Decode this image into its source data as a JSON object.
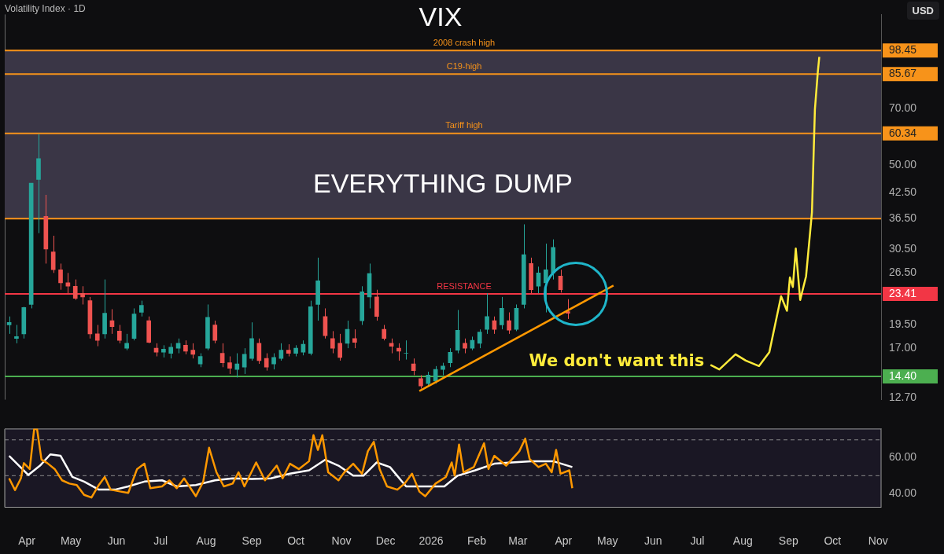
{
  "chart_data": [
    {
      "type": "candlestick",
      "title": "VIX",
      "subtitle": "Volatility Index · 1D",
      "annotations": [
        "USD"
      ],
      "x": [
        "2025-03-20",
        "2025-03-25",
        "2025-03-30",
        "2025-04-04",
        "2025-04-09",
        "2025-04-14",
        "2025-04-19",
        "2025-04-24",
        "2025-04-29",
        "2025-05-04",
        "2025-05-09",
        "2025-05-14",
        "2025-05-19",
        "2025-05-24",
        "2025-05-29",
        "2025-06-03",
        "2025-06-08",
        "2025-06-13",
        "2025-06-18",
        "2025-06-23",
        "2025-06-28",
        "2025-07-03",
        "2025-07-08",
        "2025-07-13",
        "2025-07-18",
        "2025-07-23",
        "2025-07-28",
        "2025-08-02",
        "2025-08-07",
        "2025-08-12",
        "2025-08-17",
        "2025-08-22",
        "2025-08-27",
        "2025-09-01",
        "2025-09-06",
        "2025-09-11",
        "2025-09-16",
        "2025-09-21",
        "2025-09-26",
        "2025-10-01",
        "2025-10-06",
        "2025-10-11",
        "2025-10-16",
        "2025-10-21",
        "2025-10-26",
        "2025-10-31",
        "2025-11-05",
        "2025-11-10",
        "2025-11-15",
        "2025-11-20",
        "2025-11-25",
        "2025-11-30",
        "2025-12-05",
        "2025-12-10",
        "2025-12-15",
        "2025-12-20",
        "2025-12-25",
        "2025-12-30",
        "2026-01-04",
        "2026-01-09",
        "2026-01-14",
        "2026-01-19",
        "2026-01-24",
        "2026-01-29",
        "2026-02-03",
        "2026-02-08",
        "2026-02-13",
        "2026-02-18",
        "2026-02-23",
        "2026-02-28",
        "2026-03-05",
        "2026-03-10",
        "2026-03-15",
        "2026-03-20",
        "2026-03-25",
        "2026-03-30",
        "2026-04-04"
      ],
      "ohlc": [
        [
          19.5,
          20.5,
          18.5,
          19.8
        ],
        [
          18,
          19.5,
          17.5,
          18.2
        ],
        [
          18.5,
          21.7,
          18,
          21.6
        ],
        [
          22,
          45,
          21.5,
          45
        ],
        [
          46,
          60.1,
          33.5,
          52
        ],
        [
          37,
          42,
          28,
          30.5
        ],
        [
          30,
          33,
          26.5,
          27
        ],
        [
          27,
          28,
          24,
          25
        ],
        [
          25,
          26.5,
          23.5,
          24.5
        ],
        [
          24.5,
          25.5,
          22.6,
          22.8
        ],
        [
          23.5,
          24.5,
          22,
          23
        ],
        [
          22.5,
          23,
          18,
          18.5
        ],
        [
          18.5,
          19.5,
          17.2,
          17.8
        ],
        [
          18.5,
          25.5,
          18,
          20.9
        ],
        [
          20,
          21.4,
          18.5,
          19.3
        ],
        [
          18.8,
          19.5,
          17.5,
          17.8
        ],
        [
          17,
          18.5,
          16.8,
          17.5
        ],
        [
          18,
          21.5,
          17.8,
          20.8
        ],
        [
          21,
          22.5,
          20.5,
          21.9
        ],
        [
          20,
          20.5,
          17.5,
          17.6
        ],
        [
          17,
          17.5,
          16.2,
          16.6
        ],
        [
          16.6,
          17.3,
          16.1,
          16.9
        ],
        [
          16.5,
          17.5,
          16,
          17.1
        ],
        [
          17,
          18,
          16.5,
          17.5
        ],
        [
          17.3,
          17.8,
          16.4,
          16.7
        ],
        [
          16.8,
          17.5,
          16,
          16.4
        ],
        [
          15.5,
          16.5,
          15.2,
          16.2
        ],
        [
          17,
          22,
          16.8,
          20.4
        ],
        [
          19.5,
          20,
          17.5,
          17.8
        ],
        [
          16.5,
          17.5,
          15.2,
          15.6
        ],
        [
          15.6,
          16.2,
          14.6,
          15.1
        ],
        [
          15,
          16.5,
          14.3,
          15.5
        ],
        [
          15.2,
          17,
          14.6,
          16.4
        ],
        [
          16,
          19.8,
          15.8,
          18
        ],
        [
          17.5,
          18,
          15.5,
          15.8
        ],
        [
          16,
          16.5,
          14.9,
          15.2
        ],
        [
          15.5,
          16.5,
          15,
          16.1
        ],
        [
          16,
          17.5,
          15.8,
          16.8
        ],
        [
          16.8,
          17.4,
          16.2,
          16.5
        ],
        [
          16.5,
          17.3,
          16.2,
          17
        ],
        [
          16.6,
          17.8,
          16.3,
          17.4
        ],
        [
          16.5,
          22.5,
          16.3,
          21.7
        ],
        [
          22,
          29,
          20,
          25.3
        ],
        [
          20.5,
          21.5,
          18,
          18.3
        ],
        [
          18,
          18.8,
          16.5,
          17
        ],
        [
          17.5,
          18.5,
          15.8,
          16.1
        ],
        [
          17.5,
          20,
          17,
          19
        ],
        [
          18,
          19,
          17,
          17.6
        ],
        [
          20,
          24.5,
          19.5,
          23.7
        ],
        [
          23,
          28,
          21.5,
          26.4
        ],
        [
          23,
          24,
          20,
          20.5
        ],
        [
          19,
          19.5,
          17.8,
          18
        ],
        [
          17.5,
          18,
          16.5,
          17.2
        ],
        [
          17,
          17.5,
          15.8,
          16.7
        ],
        [
          16.5,
          17.8,
          15.9,
          16.5
        ],
        [
          15.5,
          16,
          14.5,
          14.9
        ],
        [
          14.2,
          14.5,
          13.4,
          13.6
        ],
        [
          13.8,
          14.8,
          13.6,
          14.5
        ],
        [
          14,
          15.3,
          13.8,
          15
        ],
        [
          15,
          15.6,
          14.5,
          15.3
        ],
        [
          15.6,
          17,
          15.2,
          16.6
        ],
        [
          16.8,
          21.3,
          16.5,
          18.9
        ],
        [
          17.5,
          18,
          16.5,
          17
        ],
        [
          17,
          18.2,
          16.8,
          17.8
        ],
        [
          17.5,
          19,
          17,
          18.7
        ],
        [
          19,
          23.5,
          18.5,
          20.5
        ],
        [
          20,
          20.5,
          18.5,
          19
        ],
        [
          19.5,
          23,
          19,
          21.5
        ],
        [
          20,
          21,
          18.5,
          18.9
        ],
        [
          19,
          22,
          18.8,
          21.5
        ],
        [
          22,
          35.3,
          21.5,
          29.5
        ],
        [
          28,
          29,
          23.5,
          24
        ],
        [
          24.5,
          27.5,
          23.5,
          26.5
        ],
        [
          25,
          31.5,
          21,
          27
        ],
        [
          26.5,
          32.3,
          25.5,
          30.8
        ],
        [
          26,
          27,
          23.6,
          24
        ],
        [
          21.1,
          22.7,
          20.2,
          20.9
        ]
      ],
      "series": [
        {
          "type": "line",
          "color": "#ff9800",
          "x": [
            "2025-12-24",
            "2026-05-05"
          ],
          "values": [
            13.2,
            24.6
          ]
        },
        {
          "type": "line",
          "name": "We don't want this",
          "color": "#ffeb3b",
          "x": [
            "2026-07-10",
            "2026-07-16",
            "2026-07-27",
            "2026-08-03",
            "2026-08-12",
            "2026-08-19",
            "2026-08-27",
            "2026-08-31",
            "2026-09-02",
            "2026-09-04",
            "2026-09-06",
            "2026-09-09",
            "2026-09-13",
            "2026-09-17",
            "2026-09-19",
            "2026-09-21",
            "2026-09-22"
          ],
          "values": [
            15.4,
            15.0,
            16.4,
            15.8,
            15.3,
            16.6,
            23.1,
            21.2,
            25.8,
            24.4,
            30.6,
            22.6,
            26,
            37.9,
            69.5,
            86.9,
            94.8
          ]
        }
      ],
      "log": true,
      "ylim": [
        12.55,
        121.7
      ],
      "yticks": [
        {
          "value": 12.7,
          "label": "12.70"
        },
        {
          "value": 14.4,
          "label": "14.40"
        },
        {
          "value": 17,
          "label": "17.00"
        },
        {
          "value": 19.5,
          "label": "19.50"
        },
        {
          "value": 23.41,
          "label": "23.41"
        },
        {
          "value": 26.5,
          "label": "26.50"
        },
        {
          "value": 30.5,
          "label": "30.50"
        },
        {
          "value": 36.5,
          "label": "36.50"
        },
        {
          "value": 42.5,
          "label": "42.50"
        },
        {
          "value": 50,
          "label": "50.00"
        },
        {
          "value": 60.34,
          "label": "60.34"
        },
        {
          "value": 70,
          "label": "70.00"
        },
        {
          "value": 85.67,
          "label": "85.67"
        },
        {
          "value": 98.45,
          "label": "98.45"
        }
      ],
      "xlim": [
        "2025-03-17",
        "2026-11-03"
      ],
      "tick_labels": "y",
      "ref_lines": [
        {
          "axis": "y",
          "value": 98.45,
          "label": "2008 crash high",
          "color": "#f7931a"
        },
        {
          "axis": "y",
          "value": 85.67,
          "label": "C19-high",
          "color": "#f7931a"
        },
        {
          "axis": "y",
          "value": 60.34,
          "label": "Tariff high",
          "color": "#f7931a"
        },
        {
          "axis": "y",
          "value": 36.5,
          "color": "#f7931a"
        },
        {
          "axis": "y",
          "value": 23.41,
          "label": "RESISTANCE",
          "color": "#f23645"
        },
        {
          "axis": "y",
          "value": 14.4,
          "color": "#4caf50"
        }
      ],
      "bands": [
        {
          "axis": "y",
          "from": 36.5,
          "to": 98.45,
          "label": "EVERYTHING DUMP",
          "color": "#3a3646"
        }
      ]
    },
    {
      "type": "line",
      "series": [
        {
          "color": "#ff9800",
          "x": [
            "2025-03-20",
            "2025-03-24",
            "2025-03-28",
            "2025-03-30",
            "2025-04-03",
            "2025-04-06",
            "2025-04-08",
            "2025-04-11",
            "2025-04-15",
            "2025-04-20",
            "2025-04-25",
            "2025-04-30",
            "2025-05-05",
            "2025-05-10",
            "2025-05-15",
            "2025-05-20",
            "2025-05-24",
            "2025-05-28",
            "2025-06-04",
            "2025-06-09",
            "2025-06-15",
            "2025-06-20",
            "2025-06-24",
            "2025-07-02",
            "2025-07-07",
            "2025-07-12",
            "2025-07-17",
            "2025-07-25",
            "2025-07-30",
            "2025-08-03",
            "2025-08-08",
            "2025-08-13",
            "2025-08-19",
            "2025-08-23",
            "2025-08-27",
            "2025-09-04",
            "2025-09-10",
            "2025-09-18",
            "2025-09-22",
            "2025-09-27",
            "2025-10-03",
            "2025-10-10",
            "2025-10-13",
            "2025-10-16",
            "2025-10-19",
            "2025-10-23",
            "2025-10-30",
            "2025-11-03",
            "2025-11-09",
            "2025-11-15",
            "2025-11-19",
            "2025-11-23",
            "2025-11-27",
            "2025-12-02",
            "2025-12-09",
            "2025-12-14",
            "2025-12-19",
            "2025-12-24",
            "2025-12-28",
            "2026-01-04",
            "2026-01-11",
            "2026-01-15",
            "2026-01-17",
            "2026-01-20",
            "2026-01-23",
            "2026-01-30",
            "2026-02-06",
            "2026-02-09",
            "2026-02-13",
            "2026-02-21",
            "2026-03-02",
            "2026-03-06",
            "2026-03-09",
            "2026-03-15",
            "2026-03-20",
            "2026-03-24",
            "2026-03-27",
            "2026-03-30",
            "2026-04-05",
            "2026-04-07"
          ],
          "values": [
            48.5,
            42,
            48.5,
            57,
            53.7,
            76,
            76,
            59,
            57,
            53.7,
            47.4,
            45.6,
            44.8,
            39.3,
            37.8,
            44.8,
            49.3,
            42.2,
            41.1,
            40.4,
            53.7,
            56.7,
            43,
            44,
            47.4,
            43,
            48.5,
            38.5,
            46.7,
            65.6,
            51.9,
            44,
            45.6,
            51.9,
            44,
            57.4,
            47.4,
            55.6,
            48.5,
            56.7,
            53.7,
            58.1,
            72.6,
            64.4,
            72.6,
            51.9,
            47.4,
            51.9,
            56.7,
            51.1,
            63.7,
            68.9,
            53.7,
            44,
            42.2,
            45.6,
            51.1,
            41.1,
            38.5,
            45.6,
            49.3,
            57.4,
            50,
            67.4,
            51.9,
            54.8,
            68.1,
            53.7,
            61.1,
            55.6,
            63.7,
            70.7,
            59.3,
            54.8,
            56.7,
            51.9,
            64.4,
            51.1,
            53,
            43
          ]
        },
        {
          "color": "#ffffff",
          "x": [
            "2025-03-20",
            "2025-04-02",
            "2025-04-10",
            "2025-04-17",
            "2025-04-24",
            "2025-05-02",
            "2025-05-10",
            "2025-05-20",
            "2025-05-31",
            "2025-06-09",
            "2025-06-20",
            "2025-07-02",
            "2025-07-12",
            "2025-07-25",
            "2025-08-07",
            "2025-08-19",
            "2025-09-01",
            "2025-09-14",
            "2025-09-27",
            "2025-10-10",
            "2025-10-21",
            "2025-10-30",
            "2025-11-09",
            "2025-11-16",
            "2025-11-25",
            "2025-12-04",
            "2025-12-15",
            "2025-12-24",
            "2026-01-10",
            "2026-01-19",
            "2026-01-31",
            "2026-02-13",
            "2026-02-25",
            "2026-03-10",
            "2026-03-25",
            "2026-04-07"
          ],
          "values": [
            61.1,
            50.4,
            55.6,
            61.9,
            61.1,
            49.3,
            46.7,
            42.2,
            42.2,
            44,
            46.7,
            47.4,
            44,
            44.8,
            47.4,
            48.5,
            48.2,
            48.5,
            51.1,
            53,
            58.9,
            55.6,
            50,
            50,
            57.4,
            54.8,
            44,
            44,
            44,
            50,
            53,
            56.7,
            57.4,
            58.1,
            58.1,
            54.8
          ]
        }
      ],
      "xlim": [
        "2025-03-17",
        "2026-11-03"
      ],
      "xticks": [
        {
          "value": "2025-04-01",
          "label": "Apr"
        },
        {
          "value": "2025-05-01",
          "label": "May"
        },
        {
          "value": "2025-06-01",
          "label": "Jun"
        },
        {
          "value": "2025-07-01",
          "label": "Jul"
        },
        {
          "value": "2025-08-01",
          "label": "Aug"
        },
        {
          "value": "2025-09-01",
          "label": "Sep"
        },
        {
          "value": "2025-10-01",
          "label": "Oct"
        },
        {
          "value": "2025-11-01",
          "label": "Nov"
        },
        {
          "value": "2025-12-01",
          "label": "Dec"
        },
        {
          "value": "2026-01-01",
          "label": "2026"
        },
        {
          "value": "2026-02-01",
          "label": "Feb"
        },
        {
          "value": "2026-03-01",
          "label": "Mar"
        },
        {
          "value": "2026-04-01",
          "label": "Apr"
        },
        {
          "value": "2026-05-01",
          "label": "May"
        },
        {
          "value": "2026-06-01",
          "label": "Jun"
        },
        {
          "value": "2026-07-01",
          "label": "Jul"
        },
        {
          "value": "2026-08-01",
          "label": "Aug"
        },
        {
          "value": "2026-09-01",
          "label": "Sep"
        },
        {
          "value": "2026-10-01",
          "label": "Oct"
        },
        {
          "value": "2026-11-01",
          "label": "Nov"
        }
      ],
      "ylim": [
        32.6,
        76.3
      ],
      "yticks": [
        {
          "value": 40,
          "label": "40.00"
        },
        {
          "value": 60,
          "label": "60.00"
        }
      ],
      "ref_lines": [
        {
          "axis": "y",
          "value": 70,
          "color": "#8a8a8a",
          "line_style": "dashed"
        },
        {
          "axis": "y",
          "value": 50,
          "color": "#8a8a8a",
          "line_style": "dashed"
        }
      ]
    }
  ]
}
